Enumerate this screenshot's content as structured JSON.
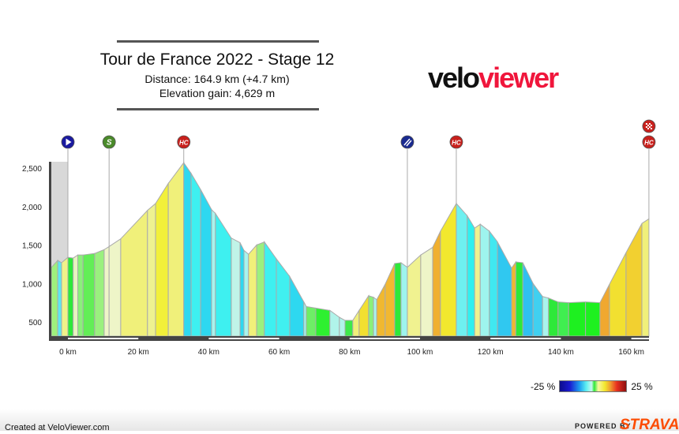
{
  "header": {
    "title": "Tour de France 2022 - Stage 12",
    "distance": "Distance: 164.9 km (+4.7 km)",
    "elevation_gain": "Elevation gain: 4,629 m"
  },
  "logo": {
    "part1": "velo",
    "part2": "viewer"
  },
  "legend": {
    "min": "-25 %",
    "max": "25 %"
  },
  "footer": {
    "created": "Created at VeloViewer.com",
    "powered": "POWERED BY",
    "brand": "STRAVA"
  },
  "markers": [
    {
      "km": 0,
      "label": "",
      "icon": "start-play-icon",
      "color": "#1a1aa0"
    },
    {
      "km": 11.7,
      "label": "S",
      "icon": "sprint-icon",
      "color": "#4a8a2a"
    },
    {
      "km": 32.9,
      "label": "HC",
      "icon": "hc-climb-icon",
      "color": "#c8201c"
    },
    {
      "km": 96.4,
      "label": "",
      "icon": "feed-zone-icon",
      "color": "#1a2a90"
    },
    {
      "km": 110.3,
      "label": "HC",
      "icon": "hc-climb-icon",
      "color": "#c8201c"
    },
    {
      "km": 165,
      "label": "HC",
      "icon": "hc-climb-icon",
      "color": "#c8201c"
    },
    {
      "km": 165,
      "label": "",
      "icon": "finish-flag-icon",
      "color": "#c8201c"
    }
  ],
  "chart_data": {
    "type": "area",
    "xlabel": "",
    "ylabel": "",
    "x_ticks": [
      "0 km",
      "20 km",
      "40 km",
      "60 km",
      "80 km",
      "100 km",
      "120 km",
      "140 km",
      "160 km"
    ],
    "x_tick_values": [
      0,
      20,
      40,
      60,
      80,
      100,
      120,
      140,
      160
    ],
    "y_ticks": [
      "2,500",
      "2,000",
      "1,500",
      "1,000",
      "500"
    ],
    "y_tick_values": [
      2500,
      2000,
      1500,
      1000,
      500
    ],
    "xlim": [
      -4.7,
      165
    ],
    "ylim": [
      310,
      2700
    ],
    "points": [
      [
        -4.7,
        1208
      ],
      [
        -2.9,
        1300
      ],
      [
        -1.8,
        1270
      ],
      [
        0,
        1340
      ],
      [
        1.5,
        1330
      ],
      [
        2.8,
        1370
      ],
      [
        4.3,
        1370
      ],
      [
        7.6,
        1390
      ],
      [
        10.3,
        1440
      ],
      [
        11.7,
        1480
      ],
      [
        15,
        1580
      ],
      [
        22.6,
        1950
      ],
      [
        24.9,
        2040
      ],
      [
        28.5,
        2300
      ],
      [
        32.9,
        2570
      ],
      [
        35,
        2430
      ],
      [
        37.7,
        2220
      ],
      [
        40.8,
        1960
      ],
      [
        41.9,
        1910
      ],
      [
        46.4,
        1590
      ],
      [
        48.9,
        1530
      ],
      [
        50,
        1430
      ],
      [
        51.3,
        1380
      ],
      [
        53.6,
        1500
      ],
      [
        55.8,
        1540
      ],
      [
        59.2,
        1320
      ],
      [
        63,
        1090
      ],
      [
        67,
        760
      ],
      [
        67.7,
        700
      ],
      [
        70.4,
        680
      ],
      [
        74.4,
        650
      ],
      [
        77.1,
        560
      ],
      [
        78.7,
        520
      ],
      [
        80.9,
        520
      ],
      [
        82.7,
        650
      ],
      [
        85.4,
        840
      ],
      [
        86.8,
        820
      ],
      [
        87.7,
        790
      ],
      [
        90.1,
        990
      ],
      [
        92.8,
        1260
      ],
      [
        94.6,
        1270
      ],
      [
        96.4,
        1210
      ],
      [
        100.2,
        1370
      ],
      [
        103.6,
        1470
      ],
      [
        105.8,
        1680
      ],
      [
        110.3,
        2040
      ],
      [
        113.4,
        1880
      ],
      [
        115.5,
        1720
      ],
      [
        117.1,
        1770
      ],
      [
        119.7,
        1680
      ],
      [
        122,
        1540
      ],
      [
        126,
        1200
      ],
      [
        127.2,
        1280
      ],
      [
        129.2,
        1270
      ],
      [
        132.1,
        1000
      ],
      [
        134.8,
        830
      ],
      [
        136.5,
        810
      ],
      [
        139.2,
        760
      ],
      [
        142.2,
        750
      ],
      [
        147,
        760
      ],
      [
        151.1,
        750
      ],
      [
        153.8,
        990
      ],
      [
        158.5,
        1400
      ],
      [
        163,
        1780
      ],
      [
        165,
        1840
      ]
    ],
    "segment_colors": [
      "#9ef07c",
      "#5ee8f0",
      "#f0f28a",
      "#2ee83a",
      "#e8f5c0",
      "#8af07a",
      "#62ee56",
      "#9af07e",
      "#eef5c8",
      "#eef5c8",
      "#f0f07a",
      "#eef290",
      "#f2f03a",
      "#f0f07a",
      "#2ed8f0",
      "#3ef0f0",
      "#2ed8f0",
      "#a8f4ee",
      "#3ef0f0",
      "#c0f4e8",
      "#2ed8f0",
      "#a8f4ee",
      "#f0f07a",
      "#9af07e",
      "#3ef0f0",
      "#40f0f0",
      "#2ed8f0",
      "#9ef4ee",
      "#6eee66",
      "#2ef030",
      "#b0f4ea",
      "#b0f4ea",
      "#3ee84a",
      "#f0f07a",
      "#f2e030",
      "#8af07a",
      "#a8f4ee",
      "#f0b830",
      "#f2b830",
      "#2ee83a",
      "#9ef4ee",
      "#f0f290",
      "#eef5c8",
      "#f0b030",
      "#f2e82e",
      "#6ef0f0",
      "#30f0f0",
      "#f0f290",
      "#9ef4ee",
      "#40e8f0",
      "#30c8f0",
      "#f0b830",
      "#2ee83a",
      "#30c0f0",
      "#40d0f0",
      "#a8f4ee",
      "#2ee83a",
      "#40ee50",
      "#1ef020",
      "#1ef020",
      "#f0a830",
      "#f2e030",
      "#f2d030",
      "#f0f07a"
    ],
    "grid": false,
    "legend": "bottom-right"
  }
}
